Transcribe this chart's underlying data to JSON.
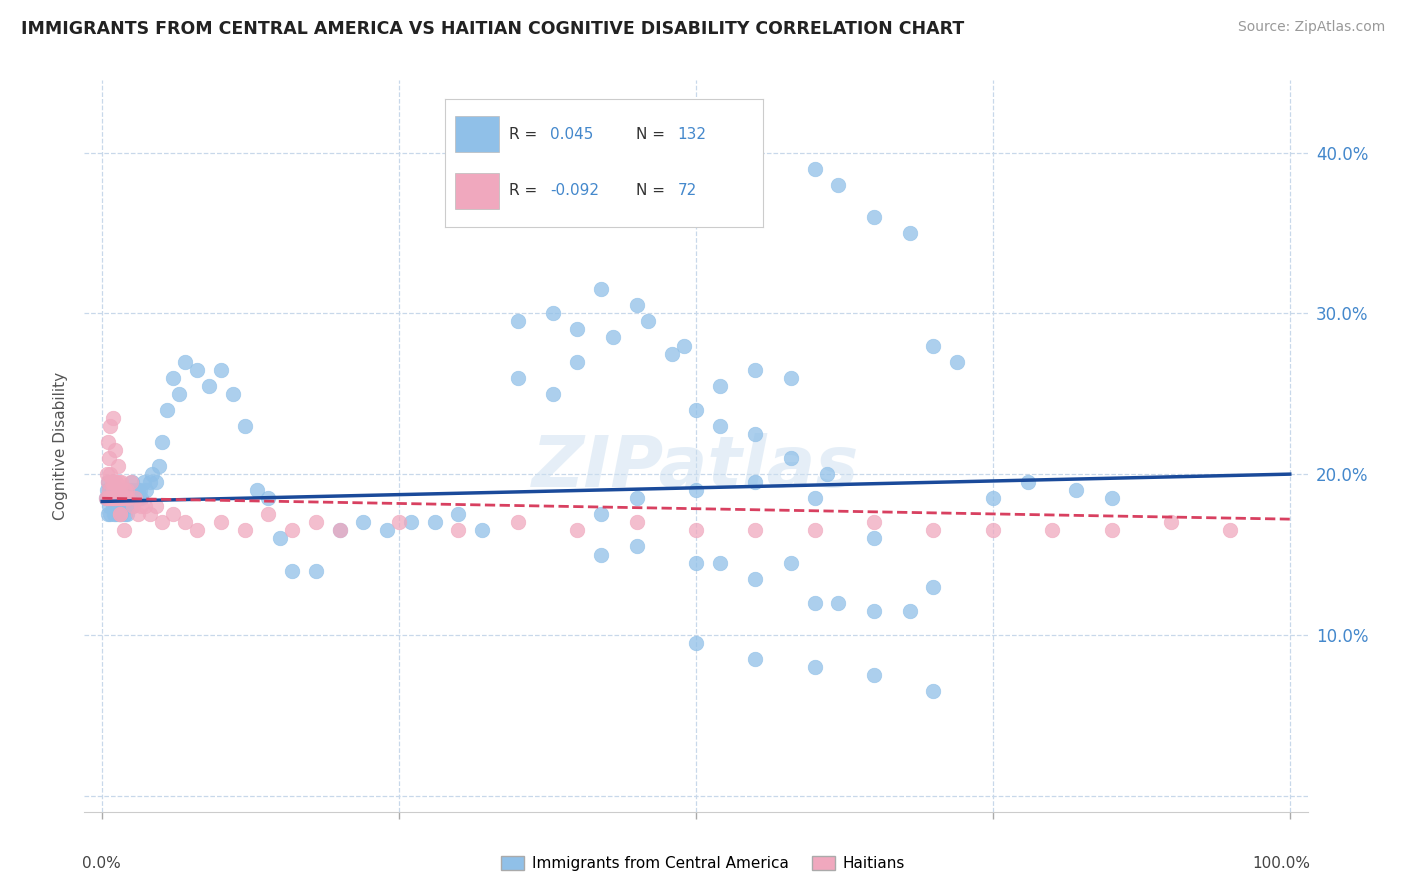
{
  "title": "IMMIGRANTS FROM CENTRAL AMERICA VS HAITIAN COGNITIVE DISABILITY CORRELATION CHART",
  "source": "Source: ZipAtlas.com",
  "ylabel": "Cognitive Disability",
  "ytick_vals": [
    0.0,
    0.1,
    0.2,
    0.3,
    0.4
  ],
  "ytick_labels": [
    "",
    "10.0%",
    "20.0%",
    "30.0%",
    "40.0%"
  ],
  "legend_label_blue": "Immigrants from Central America",
  "legend_label_pink": "Haitians",
  "r_blue": "0.045",
  "n_blue": "132",
  "r_pink": "-0.092",
  "n_pink": "72",
  "blue_color": "#90c0e8",
  "pink_color": "#f0a8be",
  "trend_blue_color": "#1a4a9a",
  "trend_pink_color": "#d84060",
  "background_color": "#ffffff",
  "grid_color": "#c8d8ea",
  "watermark": "ZIPatlas",
  "accent_color": "#4488cc",
  "blue_x": [
    0.003,
    0.004,
    0.005,
    0.005,
    0.006,
    0.006,
    0.007,
    0.007,
    0.008,
    0.008,
    0.009,
    0.009,
    0.01,
    0.01,
    0.01,
    0.011,
    0.011,
    0.012,
    0.012,
    0.013,
    0.013,
    0.014,
    0.014,
    0.015,
    0.015,
    0.015,
    0.016,
    0.016,
    0.017,
    0.017,
    0.018,
    0.018,
    0.019,
    0.019,
    0.02,
    0.02,
    0.021,
    0.021,
    0.022,
    0.022,
    0.023,
    0.024,
    0.025,
    0.025,
    0.026,
    0.027,
    0.028,
    0.029,
    0.03,
    0.031,
    0.032,
    0.033,
    0.035,
    0.037,
    0.04,
    0.042,
    0.045,
    0.048,
    0.05,
    0.055,
    0.06,
    0.065,
    0.07,
    0.08,
    0.09,
    0.1,
    0.11,
    0.12,
    0.13,
    0.14,
    0.15,
    0.16,
    0.18,
    0.2,
    0.22,
    0.24,
    0.26,
    0.28,
    0.3,
    0.32,
    0.35,
    0.38,
    0.4,
    0.42,
    0.45,
    0.48,
    0.5,
    0.52,
    0.55,
    0.58,
    0.6,
    0.62,
    0.65,
    0.68,
    0.7,
    0.72,
    0.75,
    0.78,
    0.82,
    0.85,
    0.42,
    0.45,
    0.5,
    0.52,
    0.55,
    0.58,
    0.6,
    0.62,
    0.65,
    0.68,
    0.5,
    0.55,
    0.6,
    0.65,
    0.7,
    0.42,
    0.45,
    0.5,
    0.55,
    0.6,
    0.35,
    0.38,
    0.4,
    0.43,
    0.46,
    0.49,
    0.52,
    0.55,
    0.58,
    0.61,
    0.65,
    0.7
  ],
  "blue_y": [
    0.185,
    0.19,
    0.175,
    0.195,
    0.18,
    0.19,
    0.185,
    0.175,
    0.19,
    0.185,
    0.18,
    0.195,
    0.175,
    0.185,
    0.19,
    0.18,
    0.185,
    0.175,
    0.19,
    0.185,
    0.18,
    0.19,
    0.175,
    0.185,
    0.19,
    0.185,
    0.18,
    0.175,
    0.185,
    0.19,
    0.18,
    0.185,
    0.175,
    0.185,
    0.19,
    0.18,
    0.175,
    0.185,
    0.19,
    0.185,
    0.19,
    0.185,
    0.195,
    0.18,
    0.185,
    0.19,
    0.185,
    0.185,
    0.19,
    0.185,
    0.19,
    0.185,
    0.195,
    0.19,
    0.195,
    0.2,
    0.195,
    0.205,
    0.22,
    0.24,
    0.26,
    0.25,
    0.27,
    0.265,
    0.255,
    0.265,
    0.25,
    0.23,
    0.19,
    0.185,
    0.16,
    0.14,
    0.14,
    0.165,
    0.17,
    0.165,
    0.17,
    0.17,
    0.175,
    0.165,
    0.295,
    0.3,
    0.29,
    0.315,
    0.305,
    0.275,
    0.24,
    0.255,
    0.265,
    0.26,
    0.39,
    0.38,
    0.36,
    0.35,
    0.28,
    0.27,
    0.185,
    0.195,
    0.19,
    0.185,
    0.15,
    0.155,
    0.145,
    0.145,
    0.135,
    0.145,
    0.12,
    0.12,
    0.115,
    0.115,
    0.095,
    0.085,
    0.08,
    0.075,
    0.065,
    0.175,
    0.185,
    0.19,
    0.195,
    0.185,
    0.26,
    0.25,
    0.27,
    0.285,
    0.295,
    0.28,
    0.23,
    0.225,
    0.21,
    0.2,
    0.16,
    0.13
  ],
  "pink_x": [
    0.003,
    0.004,
    0.005,
    0.005,
    0.006,
    0.006,
    0.007,
    0.007,
    0.008,
    0.008,
    0.009,
    0.009,
    0.01,
    0.01,
    0.011,
    0.011,
    0.012,
    0.012,
    0.013,
    0.013,
    0.014,
    0.014,
    0.015,
    0.015,
    0.016,
    0.016,
    0.017,
    0.018,
    0.019,
    0.02,
    0.021,
    0.022,
    0.024,
    0.026,
    0.028,
    0.03,
    0.033,
    0.036,
    0.04,
    0.045,
    0.05,
    0.06,
    0.07,
    0.08,
    0.1,
    0.12,
    0.14,
    0.16,
    0.18,
    0.2,
    0.25,
    0.3,
    0.35,
    0.4,
    0.45,
    0.5,
    0.55,
    0.6,
    0.65,
    0.7,
    0.75,
    0.8,
    0.85,
    0.9,
    0.95,
    0.005,
    0.007,
    0.009,
    0.011,
    0.013,
    0.015,
    0.018
  ],
  "pink_y": [
    0.185,
    0.2,
    0.185,
    0.195,
    0.21,
    0.19,
    0.185,
    0.2,
    0.195,
    0.185,
    0.19,
    0.185,
    0.195,
    0.185,
    0.195,
    0.185,
    0.185,
    0.195,
    0.185,
    0.19,
    0.185,
    0.195,
    0.19,
    0.175,
    0.185,
    0.195,
    0.185,
    0.185,
    0.19,
    0.185,
    0.19,
    0.185,
    0.195,
    0.18,
    0.185,
    0.175,
    0.18,
    0.18,
    0.175,
    0.18,
    0.17,
    0.175,
    0.17,
    0.165,
    0.17,
    0.165,
    0.175,
    0.165,
    0.17,
    0.165,
    0.17,
    0.165,
    0.17,
    0.165,
    0.17,
    0.165,
    0.165,
    0.165,
    0.17,
    0.165,
    0.165,
    0.165,
    0.165,
    0.17,
    0.165,
    0.22,
    0.23,
    0.235,
    0.215,
    0.205,
    0.175,
    0.165
  ]
}
